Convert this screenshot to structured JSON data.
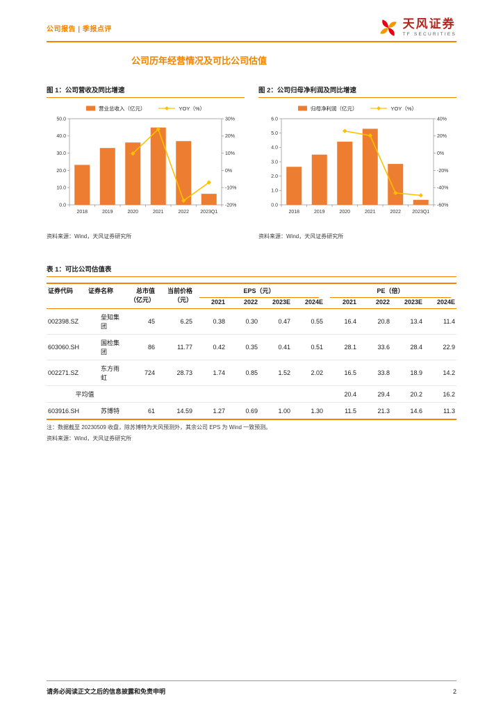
{
  "page": {
    "header_left": "公司报告 | 季报点评",
    "brand": {
      "name": "天风证券",
      "sub": "TF SECURITIES"
    },
    "section_title": "公司历年经营情况及可比公司估值",
    "footer": "请务必阅读正文之后的信息披露和免责申明",
    "page_number": "2"
  },
  "colors": {
    "accent": "#F08300",
    "bar": "#ED7D31",
    "line": "#FFC000",
    "frame": "#9b9b9b",
    "brand_red": "#B5251E",
    "logo_red": "#E60012",
    "logo_orange": "#F39800"
  },
  "chart_data": [
    {
      "type": "bar+line",
      "title": "图 1：公司营收及同比增速",
      "categories": [
        "2018",
        "2019",
        "2020",
        "2021",
        "2022",
        "2023Q1"
      ],
      "series": [
        {
          "name": "营业总收入（亿元）",
          "type": "bar",
          "axis": "left",
          "values": [
            23.2,
            33.0,
            36.2,
            44.9,
            37.0,
            6.4
          ]
        },
        {
          "name": "YOY（%）",
          "type": "line",
          "axis": "right",
          "values": [
            null,
            null,
            9.8,
            23.9,
            -17.6,
            -7.0
          ]
        }
      ],
      "left_axis": {
        "min": 0,
        "max": 50,
        "ticks": [
          "0.0",
          "10.0",
          "20.0",
          "30.0",
          "40.0",
          "50.0"
        ]
      },
      "right_axis": {
        "min": -20,
        "max": 30,
        "ticks": [
          "-20%",
          "-10%",
          "0%",
          "10%",
          "20%",
          "30%"
        ]
      },
      "grid": false,
      "legend_position": "top",
      "source": "资料来源：Wind，天风证券研究所"
    },
    {
      "type": "bar+line",
      "title": "图 2：公司归母净利润及同比增速",
      "categories": [
        "2018",
        "2019",
        "2020",
        "2021",
        "2022",
        "2023Q1"
      ],
      "series": [
        {
          "name": "归母净利润（亿元）",
          "type": "bar",
          "axis": "left",
          "values": [
            2.65,
            3.5,
            4.4,
            5.3,
            2.85,
            0.35
          ]
        },
        {
          "name": "YOY（%）",
          "type": "line",
          "axis": "right",
          "values": [
            null,
            null,
            25.7,
            20.5,
            -46.2,
            -49.0
          ]
        }
      ],
      "left_axis": {
        "min": 0,
        "max": 6,
        "ticks": [
          "0.0",
          "1.0",
          "2.0",
          "3.0",
          "4.0",
          "5.0",
          "6.0"
        ]
      },
      "right_axis": {
        "min": -60,
        "max": 40,
        "ticks": [
          "-60%",
          "-40%",
          "-20%",
          "0%",
          "20%",
          "40%"
        ]
      },
      "grid": false,
      "legend_position": "top",
      "source": "资料来源：Wind，天风证券研究所"
    }
  ],
  "table": {
    "title": "表 1：可比公司估值表",
    "headers": {
      "code": "证券代码",
      "name": "证券名称",
      "mcap_line1": "总市值",
      "mcap_line2": "（亿元）",
      "price_line1": "当前价格",
      "price_line2": "（元）",
      "eps_group": "EPS（元）",
      "pe_group": "PE（倍）",
      "years": [
        "2021",
        "2022",
        "2023E",
        "2024E"
      ]
    },
    "rows": [
      [
        "002398.SZ",
        "垒知集团",
        "45",
        "6.25",
        "0.38",
        "0.30",
        "0.47",
        "0.55",
        "16.4",
        "20.8",
        "13.4",
        "11.4"
      ],
      [
        "603060.SH",
        "国检集团",
        "86",
        "11.77",
        "0.42",
        "0.35",
        "0.41",
        "0.51",
        "28.1",
        "33.6",
        "28.4",
        "22.9"
      ],
      [
        "002271.SZ",
        "东方雨虹",
        "724",
        "28.73",
        "1.74",
        "0.85",
        "1.52",
        "2.02",
        "16.5",
        "33.8",
        "18.9",
        "14.2"
      ],
      [
        "平均值",
        "",
        "",
        "",
        "",
        "",
        "",
        "",
        "20.4",
        "29.4",
        "20.2",
        "16.2"
      ],
      [
        "603916.SH",
        "苏博特",
        "61",
        "14.59",
        "1.27",
        "0.69",
        "1.00",
        "1.30",
        "11.5",
        "21.3",
        "14.6",
        "11.3"
      ]
    ],
    "note": "注：数据截至 20230509 收盘，除苏博特为天风预测外，其余公司 EPS 为 Wind 一致预测。",
    "source": "资料来源：Wind，天风证券研究所"
  }
}
